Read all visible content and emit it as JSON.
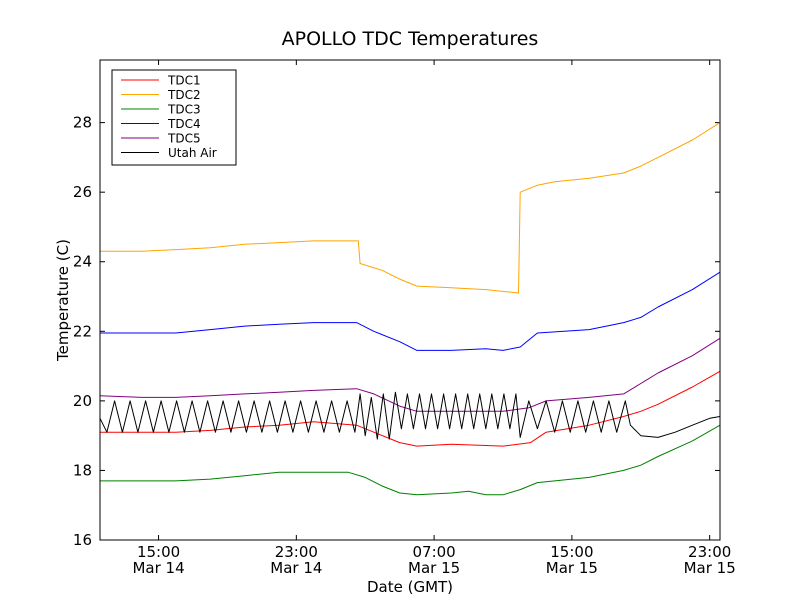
{
  "chart_data": {
    "type": "line",
    "title": "APOLLO TDC Temperatures",
    "xlabel": "Date (GMT)",
    "ylabel": "Temperature (C)",
    "xlim": [
      11.6,
      47.6
    ],
    "ylim": [
      16,
      29.8
    ],
    "yticks": [
      16,
      18,
      20,
      22,
      24,
      26,
      28
    ],
    "xticks": [
      {
        "x": 15,
        "time": "15:00",
        "date": "Mar 14"
      },
      {
        "x": 23,
        "time": "23:00",
        "date": "Mar 14"
      },
      {
        "x": 31,
        "time": "07:00",
        "date": "Mar 15"
      },
      {
        "x": 39,
        "time": "15:00",
        "date": "Mar 15"
      },
      {
        "x": 47,
        "time": "23:00",
        "date": "Mar 15"
      }
    ],
    "legend": {
      "position": "top-left"
    },
    "series": [
      {
        "name": "TDC1",
        "color": "#ff0000",
        "points": [
          [
            11.6,
            19.1
          ],
          [
            14,
            19.1
          ],
          [
            16,
            19.1
          ],
          [
            18,
            19.15
          ],
          [
            20,
            19.25
          ],
          [
            22,
            19.3
          ],
          [
            24,
            19.4
          ],
          [
            26.5,
            19.3
          ],
          [
            27.5,
            19.1
          ],
          [
            29,
            18.8
          ],
          [
            30,
            18.7
          ],
          [
            32,
            18.75
          ],
          [
            35,
            18.7
          ],
          [
            36.6,
            18.8
          ],
          [
            37.5,
            19.1
          ],
          [
            40,
            19.3
          ],
          [
            42,
            19.55
          ],
          [
            43,
            19.7
          ],
          [
            44,
            19.9
          ],
          [
            46,
            20.4
          ],
          [
            47.6,
            20.85
          ]
        ]
      },
      {
        "name": "TDC2",
        "color": "#ffa500",
        "points": [
          [
            11.6,
            24.3
          ],
          [
            14,
            24.3
          ],
          [
            16,
            24.35
          ],
          [
            18,
            24.4
          ],
          [
            20,
            24.5
          ],
          [
            22,
            24.55
          ],
          [
            24,
            24.6
          ],
          [
            26.6,
            24.6
          ],
          [
            26.7,
            23.95
          ],
          [
            28,
            23.75
          ],
          [
            29,
            23.5
          ],
          [
            30,
            23.3
          ],
          [
            32,
            23.25
          ],
          [
            34,
            23.2
          ],
          [
            35.9,
            23.1
          ],
          [
            36,
            26.0
          ],
          [
            37,
            26.2
          ],
          [
            38,
            26.3
          ],
          [
            40,
            26.4
          ],
          [
            42,
            26.55
          ],
          [
            43,
            26.75
          ],
          [
            44,
            27.0
          ],
          [
            46,
            27.5
          ],
          [
            47.6,
            28.0
          ]
        ]
      },
      {
        "name": "TDC3",
        "color": "#008000",
        "points": [
          [
            11.6,
            17.7
          ],
          [
            14,
            17.7
          ],
          [
            16,
            17.7
          ],
          [
            18,
            17.75
          ],
          [
            20,
            17.85
          ],
          [
            22,
            17.95
          ],
          [
            24,
            17.95
          ],
          [
            26,
            17.95
          ],
          [
            27,
            17.8
          ],
          [
            28,
            17.55
          ],
          [
            29,
            17.35
          ],
          [
            30,
            17.3
          ],
          [
            32,
            17.35
          ],
          [
            33,
            17.4
          ],
          [
            34,
            17.3
          ],
          [
            35,
            17.3
          ],
          [
            36,
            17.45
          ],
          [
            37,
            17.65
          ],
          [
            40,
            17.8
          ],
          [
            42,
            18.0
          ],
          [
            43,
            18.15
          ],
          [
            44,
            18.4
          ],
          [
            46,
            18.85
          ],
          [
            47.6,
            19.3
          ]
        ]
      },
      {
        "name": "TDC4",
        "color": "#0000ff",
        "points": [
          [
            11.6,
            21.95
          ],
          [
            14,
            21.95
          ],
          [
            16,
            21.95
          ],
          [
            18,
            22.05
          ],
          [
            20,
            22.15
          ],
          [
            22,
            22.2
          ],
          [
            24,
            22.25
          ],
          [
            26.5,
            22.25
          ],
          [
            27.5,
            22.0
          ],
          [
            29,
            21.7
          ],
          [
            30,
            21.45
          ],
          [
            32,
            21.45
          ],
          [
            34,
            21.5
          ],
          [
            35,
            21.45
          ],
          [
            36,
            21.55
          ],
          [
            37,
            21.95
          ],
          [
            40,
            22.05
          ],
          [
            42,
            22.25
          ],
          [
            43,
            22.4
          ],
          [
            44,
            22.7
          ],
          [
            46,
            23.2
          ],
          [
            47.6,
            23.7
          ]
        ]
      },
      {
        "name": "TDC5",
        "color": "#800080",
        "points": [
          [
            11.6,
            20.15
          ],
          [
            14,
            20.1
          ],
          [
            16,
            20.1
          ],
          [
            18,
            20.15
          ],
          [
            20,
            20.2
          ],
          [
            22,
            20.25
          ],
          [
            24,
            20.3
          ],
          [
            26.5,
            20.35
          ],
          [
            27.5,
            20.2
          ],
          [
            29,
            19.85
          ],
          [
            30,
            19.7
          ],
          [
            32,
            19.7
          ],
          [
            35,
            19.7
          ],
          [
            36.5,
            19.8
          ],
          [
            37.5,
            20.0
          ],
          [
            40,
            20.1
          ],
          [
            42,
            20.2
          ],
          [
            43,
            20.5
          ],
          [
            44,
            20.8
          ],
          [
            46,
            21.3
          ],
          [
            47.6,
            21.8
          ]
        ]
      },
      {
        "name": "Utah Air",
        "color": "#000000",
        "points": [
          [
            11.6,
            19.5
          ],
          [
            12,
            19.1
          ],
          [
            12.45,
            20.0
          ],
          [
            12.9,
            19.1
          ],
          [
            13.35,
            20.0
          ],
          [
            13.8,
            19.1
          ],
          [
            14.25,
            20.0
          ],
          [
            14.7,
            19.1
          ],
          [
            15.15,
            20.0
          ],
          [
            15.6,
            19.1
          ],
          [
            16.05,
            20.0
          ],
          [
            16.5,
            19.1
          ],
          [
            16.95,
            20.0
          ],
          [
            17.4,
            19.1
          ],
          [
            17.85,
            20.0
          ],
          [
            18.3,
            19.1
          ],
          [
            18.75,
            20.0
          ],
          [
            19.2,
            19.1
          ],
          [
            19.65,
            20.0
          ],
          [
            20.1,
            19.1
          ],
          [
            20.55,
            20.0
          ],
          [
            21.0,
            19.1
          ],
          [
            21.45,
            20.0
          ],
          [
            21.9,
            19.1
          ],
          [
            22.35,
            20.0
          ],
          [
            22.8,
            19.1
          ],
          [
            23.25,
            20.0
          ],
          [
            23.7,
            19.1
          ],
          [
            24.15,
            20.0
          ],
          [
            24.6,
            19.1
          ],
          [
            25.05,
            20.0
          ],
          [
            25.5,
            19.1
          ],
          [
            25.95,
            20.0
          ],
          [
            26.4,
            19.1
          ],
          [
            26.7,
            20.2
          ],
          [
            27.0,
            19.0
          ],
          [
            27.35,
            20.1
          ],
          [
            27.7,
            18.9
          ],
          [
            28.05,
            20.2
          ],
          [
            28.4,
            18.9
          ],
          [
            28.75,
            20.25
          ],
          [
            29.1,
            19.2
          ],
          [
            29.45,
            20.2
          ],
          [
            29.8,
            19.2
          ],
          [
            30.15,
            20.2
          ],
          [
            30.5,
            19.2
          ],
          [
            30.85,
            20.2
          ],
          [
            31.2,
            19.2
          ],
          [
            31.55,
            20.2
          ],
          [
            31.9,
            19.2
          ],
          [
            32.25,
            20.2
          ],
          [
            32.6,
            19.2
          ],
          [
            32.95,
            20.2
          ],
          [
            33.3,
            19.2
          ],
          [
            33.65,
            20.2
          ],
          [
            34.0,
            19.2
          ],
          [
            34.35,
            20.2
          ],
          [
            34.7,
            19.2
          ],
          [
            35.05,
            20.2
          ],
          [
            35.4,
            19.2
          ],
          [
            35.75,
            20.2
          ],
          [
            36.0,
            18.95
          ],
          [
            36.5,
            20.0
          ],
          [
            37.0,
            19.2
          ],
          [
            37.5,
            20.0
          ],
          [
            38.0,
            19.1
          ],
          [
            38.45,
            20.0
          ],
          [
            38.9,
            19.1
          ],
          [
            39.35,
            20.0
          ],
          [
            39.8,
            19.1
          ],
          [
            40.25,
            20.0
          ],
          [
            40.7,
            19.1
          ],
          [
            41.15,
            20.0
          ],
          [
            41.6,
            19.1
          ],
          [
            42.1,
            20.0
          ],
          [
            42.4,
            19.3
          ],
          [
            43.0,
            19.0
          ],
          [
            44.0,
            18.95
          ],
          [
            45.0,
            19.1
          ],
          [
            46.0,
            19.3
          ],
          [
            47.0,
            19.5
          ],
          [
            47.6,
            19.55
          ]
        ]
      }
    ]
  }
}
